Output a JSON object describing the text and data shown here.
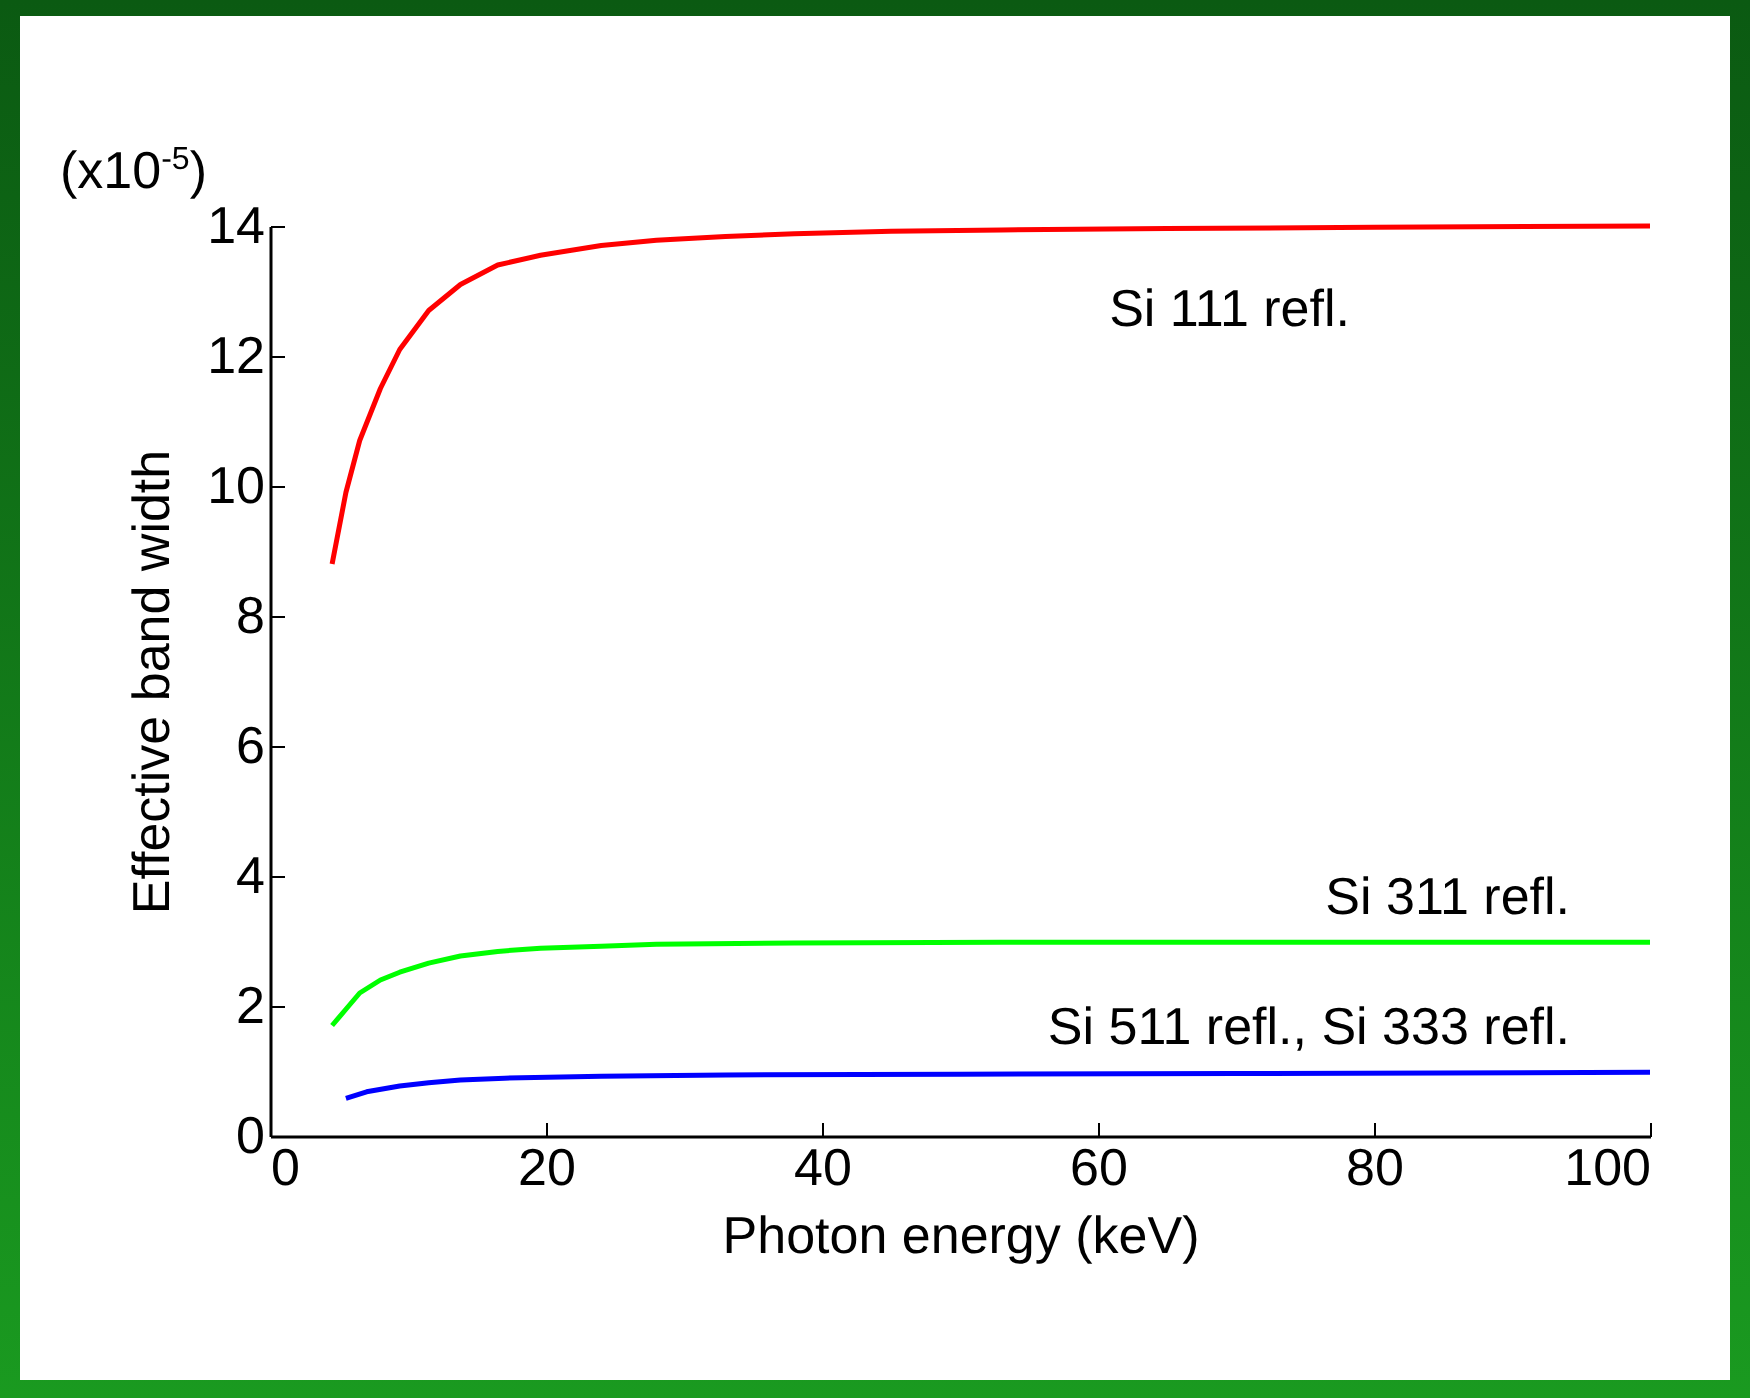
{
  "chart_data": {
    "type": "line",
    "xlabel": "Photon energy (keV)",
    "ylabel": "Effective band width",
    "annotations": [
      "(x10$^{-5}$)"
    ],
    "xlim": [
      0,
      100
    ],
    "xticks": [
      0,
      20,
      40,
      60,
      80,
      100
    ],
    "ylim": [
      0,
      14
    ],
    "yticks": [
      0,
      2,
      4,
      6,
      8,
      10,
      12,
      14
    ],
    "grid": false,
    "legend": false,
    "line_style": "solid",
    "marker": "none",
    "series": [
      {
        "name": "Si 111 refl.",
        "color": "#ff0000",
        "x": [
          4.5,
          5.5,
          6.5,
          8,
          9.4,
          11.5,
          13.8,
          16.5,
          19.6,
          24,
          28,
          33,
          38,
          45,
          53,
          65,
          80,
          100
        ],
        "values": [
          8.8,
          9.9,
          10.7,
          11.5,
          12.1,
          12.7,
          13.1,
          13.4,
          13.55,
          13.7,
          13.78,
          13.84,
          13.88,
          13.92,
          13.94,
          13.96,
          13.98,
          14.0
        ]
      },
      {
        "name": "Si 311 refl.",
        "color": "#00ff00",
        "x": [
          4.5,
          5.5,
          6.5,
          8,
          9.4,
          11.5,
          13.8,
          16.5,
          19.6,
          24,
          28,
          38,
          53,
          70,
          100
        ],
        "values": [
          1.7,
          1.95,
          2.2,
          2.4,
          2.52,
          2.66,
          2.77,
          2.84,
          2.89,
          2.92,
          2.95,
          2.97,
          2.98,
          2.98,
          2.98
        ]
      },
      {
        "name": "Si 511 refl., Si 333 refl.",
        "color": "#0000ff",
        "x": [
          5.5,
          7,
          9.4,
          11.5,
          13.8,
          17,
          24,
          33,
          50,
          70,
          100
        ],
        "values": [
          0.58,
          0.68,
          0.77,
          0.82,
          0.86,
          0.89,
          0.92,
          0.94,
          0.95,
          0.96,
          0.98
        ]
      }
    ]
  }
}
